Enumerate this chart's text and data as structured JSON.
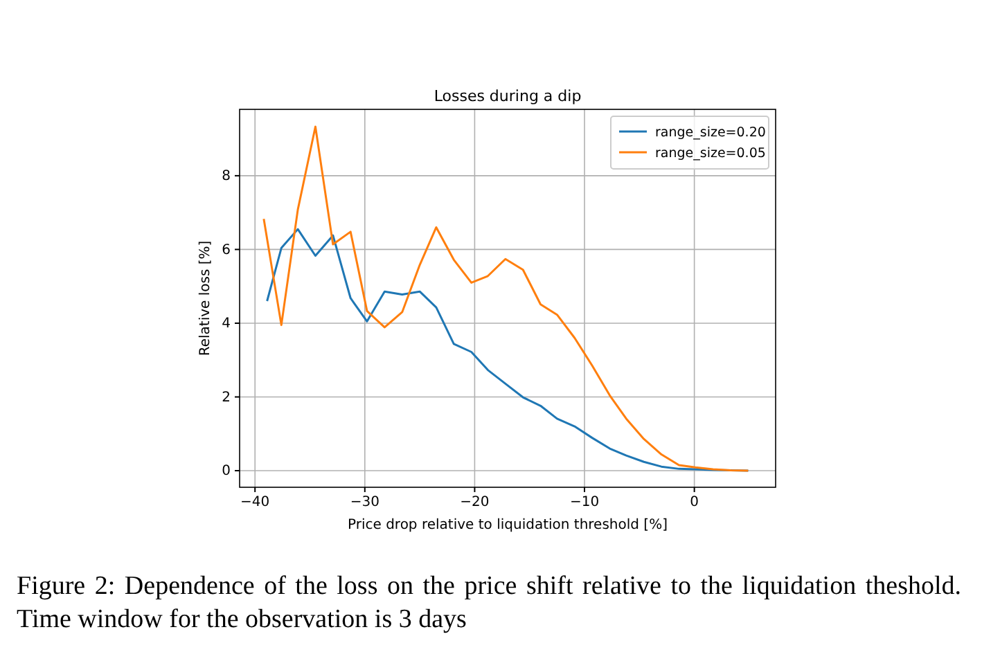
{
  "chart_data": {
    "type": "line",
    "title": "Losses during a dip",
    "xlabel": "Price drop relative to liquidation threshold [%]",
    "ylabel": "Relative loss [%]",
    "x": [
      -39.2,
      -37.6,
      -36.1,
      -34.5,
      -32.9,
      -31.3,
      -29.8,
      -28.2,
      -26.6,
      -25.0,
      -23.5,
      -21.9,
      -20.3,
      -18.8,
      -17.2,
      -15.6,
      -14.0,
      -12.5,
      -10.9,
      -9.3,
      -7.7,
      -6.2,
      -4.6,
      -3.0,
      -1.4,
      0.1,
      1.7,
      3.3,
      4.9
    ],
    "series": [
      {
        "name": "range_size=0.20",
        "color": "#1f77b4",
        "x": [
          -38.9,
          -37.6,
          -36.1,
          -34.5,
          -32.9,
          -31.3,
          -29.8,
          -28.2,
          -26.6,
          -25.0,
          -23.5,
          -21.9,
          -20.3,
          -18.8,
          -17.2,
          -15.6,
          -14.0,
          -12.5,
          -10.9,
          -9.3,
          -7.7,
          -6.2,
          -4.6,
          -3.0,
          -1.4,
          0.1,
          1.7,
          3.3,
          4.9
        ],
        "values": [
          4.6,
          6.04,
          6.55,
          5.83,
          6.38,
          4.68,
          4.05,
          4.86,
          4.78,
          4.86,
          4.43,
          3.44,
          3.22,
          2.73,
          2.36,
          1.99,
          1.76,
          1.41,
          1.2,
          0.89,
          0.6,
          0.41,
          0.24,
          0.11,
          0.05,
          0.04,
          0.02,
          null,
          0.0
        ]
      },
      {
        "name": "range_size=0.05",
        "color": "#ff7f0e",
        "values": [
          6.83,
          3.95,
          7.08,
          9.33,
          6.14,
          6.48,
          4.33,
          3.89,
          4.3,
          5.58,
          6.6,
          5.72,
          5.1,
          5.28,
          5.74,
          5.45,
          4.51,
          4.23,
          3.6,
          2.85,
          2.04,
          1.41,
          0.86,
          0.44,
          0.15,
          0.09,
          0.04,
          0.01,
          0.0
        ]
      }
    ],
    "xlim": [
      -41.4,
      7.4
    ],
    "xticks": [
      {
        "value": -40,
        "label": "−40"
      },
      {
        "value": -30,
        "label": "−30"
      },
      {
        "value": -20,
        "label": "−20"
      },
      {
        "value": -10,
        "label": "−10"
      },
      0
    ],
    "ylim": [
      -0.45,
      9.8
    ],
    "yticks": [
      0,
      2,
      4,
      6,
      8
    ],
    "grid": true,
    "legend": "top right",
    "marker": "none",
    "line_style": "solid",
    "annotations": [
      "Figure 2: Dependence of the loss on the price shift relative to the liquidation theshold. Time window for the observation is 3 days"
    ]
  }
}
